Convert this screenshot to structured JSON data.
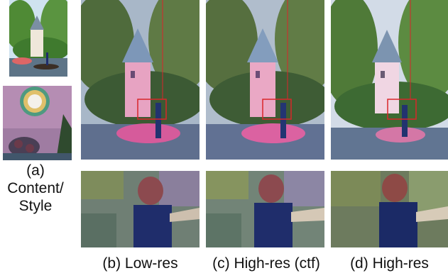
{
  "captions": {
    "a_line1": "(a)",
    "a_line2": "Content/",
    "a_line3": "Style",
    "b": "(b) Low-res",
    "c": "(c) High-res (ctf)",
    "d": "(d) High-res"
  },
  "colors": {
    "highlight_box": "#d9262a",
    "sky": "#cfd8e6",
    "foliage": "#4b7a3a",
    "tower": "#e9a9c4",
    "water": "#5d6e86",
    "boy_shirt": "#1f2d6b"
  }
}
